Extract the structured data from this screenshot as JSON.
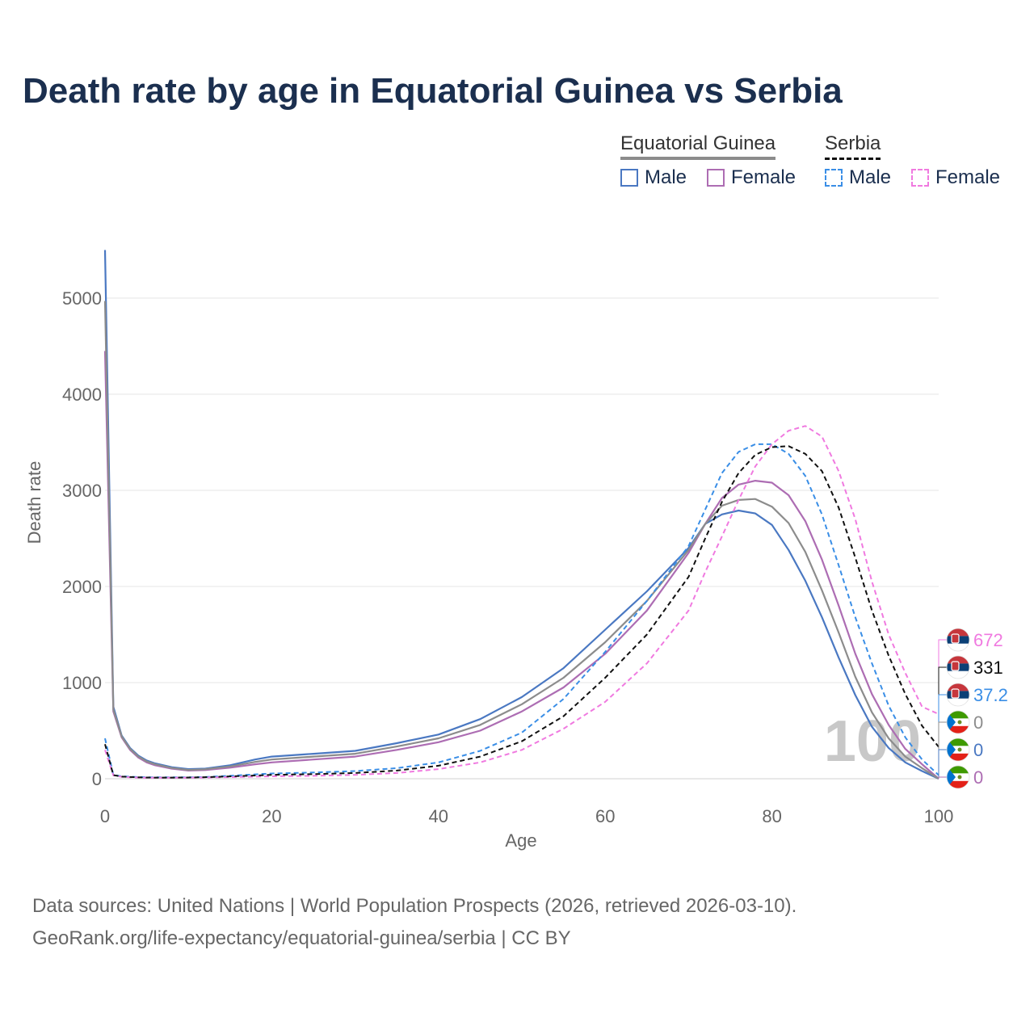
{
  "title": "Death rate by age in Equatorial Guinea vs Serbia",
  "legend": {
    "groups": [
      {
        "name": "Equatorial Guinea",
        "items": [
          {
            "label": "Male",
            "color": "#4a78c2"
          },
          {
            "label": "Female",
            "color": "#ad6db3"
          }
        ]
      },
      {
        "name": "Serbia",
        "items": [
          {
            "label": "Male",
            "color": "#3a8ee6"
          },
          {
            "label": "Female",
            "color": "#f07ae0"
          }
        ]
      }
    ]
  },
  "year_watermark": "100",
  "footer": {
    "line1": "Data sources: United Nations | World Population Prospects (2026, retrieved 2026-03-10).",
    "line2": "GeoRank.org/life-expectancy/equatorial-guinea/serbia | CC BY"
  },
  "chart_data": {
    "type": "line",
    "title": "Death rate by age in Equatorial Guinea vs Serbia",
    "xlabel": "Age",
    "ylabel": "Death rate",
    "xlim": [
      0,
      100
    ],
    "ylim": [
      0,
      5500
    ],
    "xticks": [
      0,
      20,
      40,
      60,
      80,
      100
    ],
    "yticks": [
      0,
      1000,
      2000,
      3000,
      4000,
      5000
    ],
    "x": [
      0,
      1,
      2,
      3,
      4,
      5,
      6,
      8,
      10,
      12,
      15,
      18,
      20,
      25,
      30,
      35,
      40,
      45,
      50,
      55,
      60,
      65,
      70,
      72,
      74,
      76,
      78,
      80,
      82,
      84,
      86,
      88,
      90,
      92,
      94,
      96,
      98,
      100
    ],
    "series": [
      {
        "name": "Equatorial Guinea Male",
        "country": "Equatorial Guinea",
        "sex": "Male",
        "color": "#4a78c2",
        "dash": "solid",
        "values": [
          5500,
          750,
          450,
          320,
          240,
          190,
          160,
          120,
          100,
          105,
          140,
          200,
          230,
          260,
          290,
          370,
          460,
          620,
          850,
          1150,
          1550,
          1950,
          2400,
          2650,
          2750,
          2790,
          2760,
          2640,
          2380,
          2060,
          1680,
          1260,
          870,
          540,
          320,
          170,
          80,
          0
        ]
      },
      {
        "name": "Equatorial Guinea Female",
        "country": "Equatorial Guinea",
        "sex": "Female",
        "color": "#ad6db3",
        "dash": "solid",
        "values": [
          4450,
          700,
          430,
          300,
          220,
          170,
          140,
          105,
          85,
          90,
          115,
          150,
          170,
          200,
          230,
          300,
          380,
          500,
          700,
          950,
          1300,
          1750,
          2350,
          2650,
          2920,
          3060,
          3100,
          3080,
          2950,
          2680,
          2280,
          1800,
          1300,
          880,
          560,
          310,
          150,
          0
        ]
      },
      {
        "name": "Equatorial Guinea Total",
        "country": "Equatorial Guinea",
        "sex": "Total",
        "color": "#8c8c8c",
        "dash": "solid",
        "values": [
          4970,
          720,
          440,
          310,
          230,
          180,
          150,
          112,
          92,
          98,
          128,
          175,
          200,
          230,
          260,
          335,
          420,
          560,
          775,
          1050,
          1420,
          1850,
          2380,
          2650,
          2840,
          2900,
          2910,
          2830,
          2660,
          2360,
          1960,
          1520,
          1060,
          690,
          420,
          230,
          110,
          0
        ]
      },
      {
        "name": "Serbia Male",
        "country": "Serbia",
        "sex": "Male",
        "color": "#3a8ee6",
        "dash": "dashed",
        "values": [
          420,
          40,
          25,
          20,
          18,
          15,
          14,
          14,
          15,
          18,
          30,
          45,
          55,
          65,
          80,
          110,
          170,
          290,
          480,
          830,
          1320,
          1850,
          2420,
          2800,
          3180,
          3400,
          3480,
          3480,
          3380,
          3150,
          2750,
          2220,
          1680,
          1200,
          760,
          430,
          200,
          37.2
        ]
      },
      {
        "name": "Serbia Female",
        "country": "Serbia",
        "sex": "Female",
        "color": "#f07ae0",
        "dash": "dashed",
        "values": [
          300,
          35,
          20,
          15,
          12,
          10,
          10,
          10,
          11,
          13,
          17,
          22,
          25,
          30,
          40,
          60,
          100,
          170,
          300,
          520,
          800,
          1200,
          1750,
          2150,
          2520,
          2900,
          3250,
          3480,
          3620,
          3670,
          3560,
          3200,
          2700,
          2050,
          1500,
          1100,
          750,
          672
        ]
      },
      {
        "name": "Serbia Total",
        "country": "Serbia",
        "sex": "Total",
        "color": "#111111",
        "dash": "dashed",
        "values": [
          360,
          38,
          22,
          18,
          15,
          13,
          12,
          12,
          13,
          16,
          24,
          34,
          40,
          48,
          60,
          85,
          135,
          230,
          390,
          650,
          1050,
          1500,
          2100,
          2500,
          2880,
          3180,
          3370,
          3450,
          3460,
          3380,
          3200,
          2820,
          2300,
          1750,
          1280,
          880,
          550,
          331
        ]
      }
    ],
    "end_labels": [
      {
        "text": "672",
        "color": "#f07ae0",
        "country": "Serbia"
      },
      {
        "text": "331",
        "color": "#111111",
        "country": "Serbia"
      },
      {
        "text": "37.2",
        "color": "#3a8ee6",
        "country": "Serbia"
      },
      {
        "text": "0",
        "color": "#8c8c8c",
        "country": "Equatorial Guinea"
      },
      {
        "text": "0",
        "color": "#4a78c2",
        "country": "Equatorial Guinea"
      },
      {
        "text": "0",
        "color": "#ad6db3",
        "country": "Equatorial Guinea"
      }
    ]
  }
}
